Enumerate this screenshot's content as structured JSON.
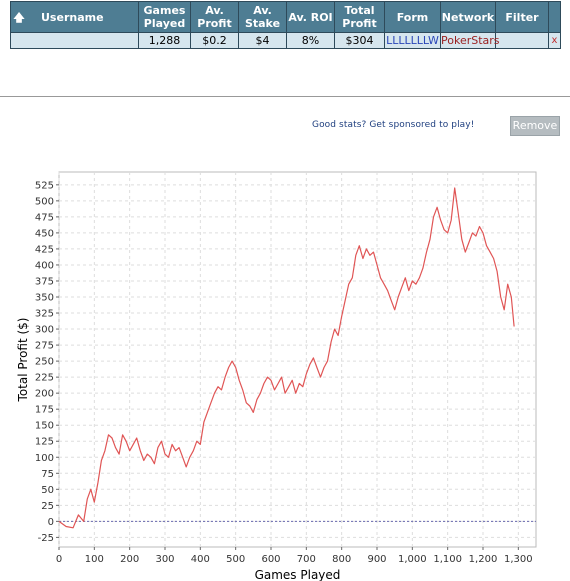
{
  "table": {
    "headers": {
      "username": "Username",
      "games_played": [
        "Games",
        "Played"
      ],
      "av_profit": [
        "Av.",
        "Profit"
      ],
      "av_stake": [
        "Av.",
        "Stake"
      ],
      "av_roi": "Av. ROI",
      "total_profit": [
        "Total",
        "Profit"
      ],
      "form": "Form",
      "network": "Network",
      "filter": "Filter"
    },
    "row": {
      "username": "",
      "games_played": "1,288",
      "av_profit": "$0.2",
      "av_stake": "$4",
      "av_roi": "8%",
      "total_profit": "$304",
      "form": "LLLLLLLW",
      "network": "PokerStars",
      "filter": "",
      "remove": "x"
    }
  },
  "sponsor": {
    "text": "Good stats? Get sponsored to play!"
  },
  "remove_button": {
    "label": "Remove"
  },
  "chart_data": {
    "type": "line",
    "xlabel": "Games Played",
    "ylabel": "Total Profit ($)",
    "xlim": [
      0,
      1350
    ],
    "ylim": [
      -40,
      545
    ],
    "x_ticks": [
      0,
      100,
      200,
      300,
      400,
      500,
      600,
      700,
      800,
      900,
      1000,
      1100,
      1200,
      1300
    ],
    "x_tick_labels": [
      "0",
      "100",
      "200",
      "300",
      "400",
      "500",
      "600",
      "700",
      "800",
      "900",
      "1,000",
      "1,100",
      "1,200",
      "1,300"
    ],
    "y_ticks": [
      -25,
      0,
      25,
      50,
      75,
      100,
      125,
      150,
      175,
      200,
      225,
      250,
      275,
      300,
      325,
      350,
      375,
      400,
      425,
      450,
      475,
      500,
      525
    ],
    "grid": true,
    "zero_line": true,
    "line_color": "#e05555",
    "series": [
      {
        "x": [
          0,
          20,
          40,
          55,
          70,
          80,
          90,
          100,
          110,
          120,
          130,
          140,
          150,
          160,
          170,
          180,
          190,
          200,
          210,
          220,
          230,
          240,
          250,
          260,
          270,
          280,
          290,
          300,
          310,
          320,
          330,
          340,
          350,
          360,
          370,
          380,
          390,
          400,
          410,
          420,
          430,
          440,
          450,
          460,
          470,
          480,
          490,
          500,
          510,
          520,
          530,
          540,
          550,
          560,
          570,
          580,
          590,
          600,
          610,
          620,
          630,
          640,
          650,
          660,
          670,
          680,
          690,
          700,
          710,
          720,
          730,
          740,
          750,
          760,
          770,
          780,
          790,
          800,
          810,
          820,
          830,
          840,
          850,
          860,
          870,
          880,
          890,
          900,
          910,
          920,
          930,
          940,
          950,
          960,
          970,
          980,
          990,
          1000,
          1010,
          1020,
          1030,
          1040,
          1050,
          1060,
          1070,
          1080,
          1090,
          1100,
          1110,
          1120,
          1130,
          1140,
          1150,
          1160,
          1170,
          1180,
          1190,
          1200,
          1210,
          1220,
          1230,
          1240,
          1250,
          1260,
          1270,
          1280,
          1288
        ],
        "y": [
          0,
          -8,
          -10,
          10,
          0,
          35,
          50,
          30,
          60,
          95,
          110,
          135,
          130,
          115,
          105,
          135,
          125,
          110,
          120,
          130,
          110,
          95,
          105,
          100,
          90,
          115,
          125,
          105,
          100,
          120,
          110,
          115,
          100,
          85,
          100,
          110,
          125,
          120,
          155,
          170,
          185,
          200,
          210,
          205,
          225,
          240,
          250,
          240,
          220,
          205,
          185,
          180,
          170,
          190,
          200,
          215,
          225,
          220,
          205,
          215,
          225,
          200,
          210,
          220,
          200,
          215,
          210,
          230,
          245,
          255,
          240,
          225,
          240,
          250,
          280,
          300,
          290,
          320,
          345,
          370,
          380,
          415,
          430,
          410,
          425,
          415,
          420,
          400,
          380,
          370,
          360,
          345,
          330,
          350,
          365,
          380,
          360,
          375,
          370,
          380,
          395,
          420,
          440,
          475,
          490,
          470,
          455,
          450,
          470,
          520,
          480,
          440,
          420,
          435,
          450,
          445,
          460,
          450,
          430,
          420,
          410,
          390,
          350,
          330,
          370,
          350,
          304
        ]
      }
    ]
  }
}
